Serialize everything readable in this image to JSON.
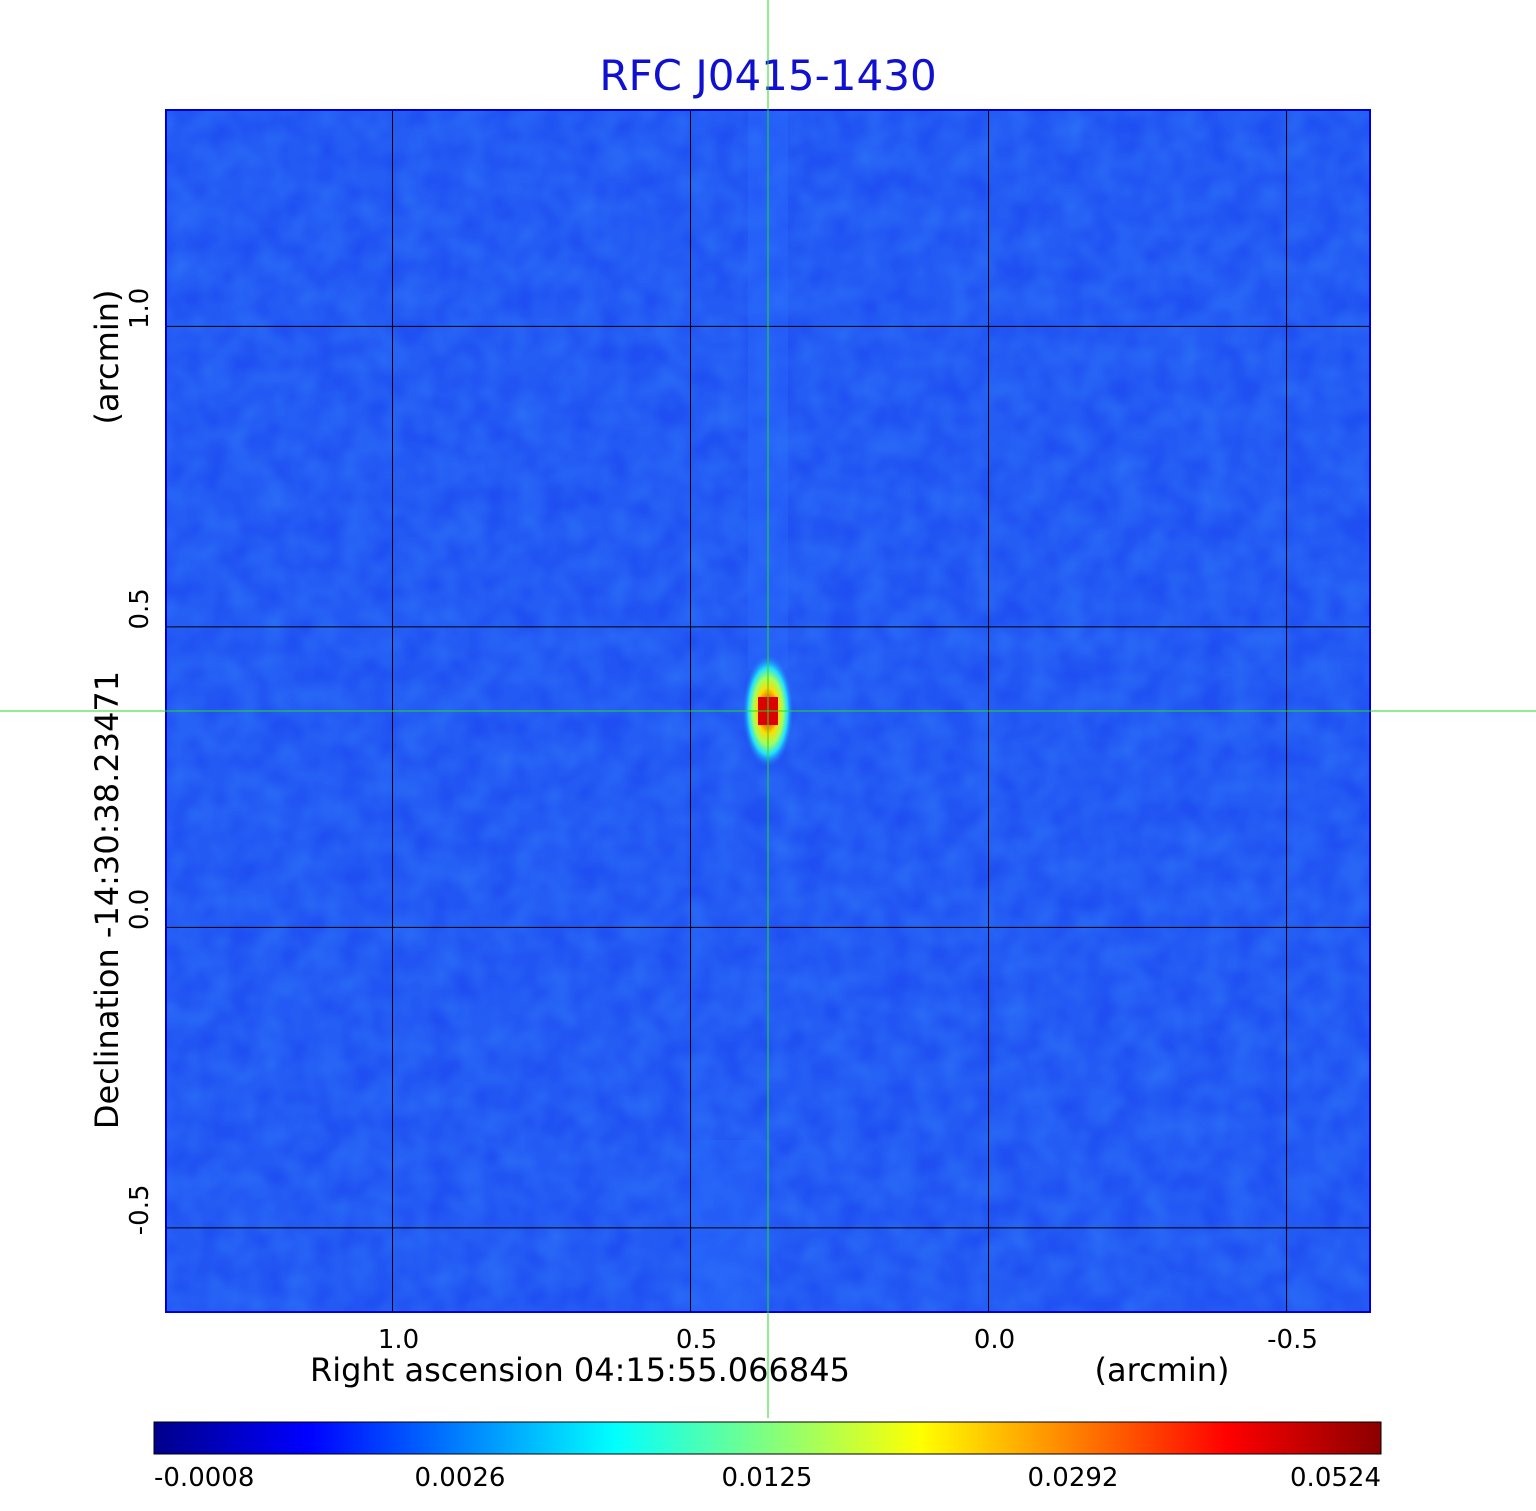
{
  "chart_data": {
    "type": "heatmap",
    "title": "RFC J0415-1430",
    "xlabel": "Right ascension  04:15:55.066845",
    "xunit": "(arcmin)",
    "ylabel": "Declination  -14:30:38.23471",
    "yunit": "(arcmin)",
    "x_range": [
      1.38,
      -0.64
    ],
    "y_range": [
      -0.64,
      1.36
    ],
    "x_ticks": [
      {
        "value": 1.0,
        "label": "1.0"
      },
      {
        "value": 0.5,
        "label": "0.5"
      },
      {
        "value": 0.0,
        "label": "0.0"
      },
      {
        "value": -0.5,
        "label": "-0.5"
      }
    ],
    "y_ticks": [
      {
        "value": 1.0,
        "label": "1.0"
      },
      {
        "value": 0.5,
        "label": "0.5"
      },
      {
        "value": 0.0,
        "label": "0.0"
      },
      {
        "value": -0.5,
        "label": "-0.5"
      }
    ],
    "grid": true,
    "crosshair": {
      "x": 0.37,
      "y": 0.36,
      "color": "#22dd22"
    },
    "source_peak": {
      "x": 0.37,
      "y": 0.36,
      "value": 0.0524
    },
    "colormap": "jet",
    "colorbar": {
      "ticks": [
        "-0.0008",
        "0.0026",
        "0.0125",
        "0.0292",
        "0.0524"
      ],
      "colors": [
        "#00008b",
        "#0000ff",
        "#0080ff",
        "#00ffff",
        "#80ff80",
        "#ffff00",
        "#ff8000",
        "#ff0000",
        "#8b0000"
      ]
    },
    "colors": {
      "title": "#1010d0",
      "background_map": "#1f4ff2",
      "grid": "#000000"
    }
  }
}
